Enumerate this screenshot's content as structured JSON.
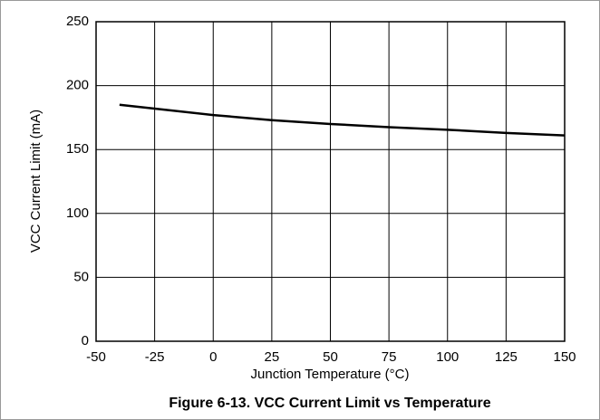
{
  "chart_data": {
    "type": "line",
    "title": "Figure 6-13. VCC Current Limit vs Temperature",
    "x_label": "Junction Temperature (°C)",
    "y_label": "VCC Current Limit (mA)",
    "series": [
      {
        "color": "#000000",
        "x": [
          -40,
          -25,
          0,
          25,
          50,
          75,
          100,
          125,
          150
        ],
        "values": [
          185,
          182,
          177,
          173,
          170,
          167.5,
          165.5,
          163,
          161
        ]
      }
    ],
    "xlim": [
      -50,
      150
    ],
    "xticks": [
      -50,
      -25,
      0,
      25,
      50,
      75,
      100,
      125,
      150
    ],
    "ylim": [
      0,
      250
    ],
    "yticks": [
      0,
      50,
      100,
      150,
      200,
      250
    ],
    "grid": true
  }
}
